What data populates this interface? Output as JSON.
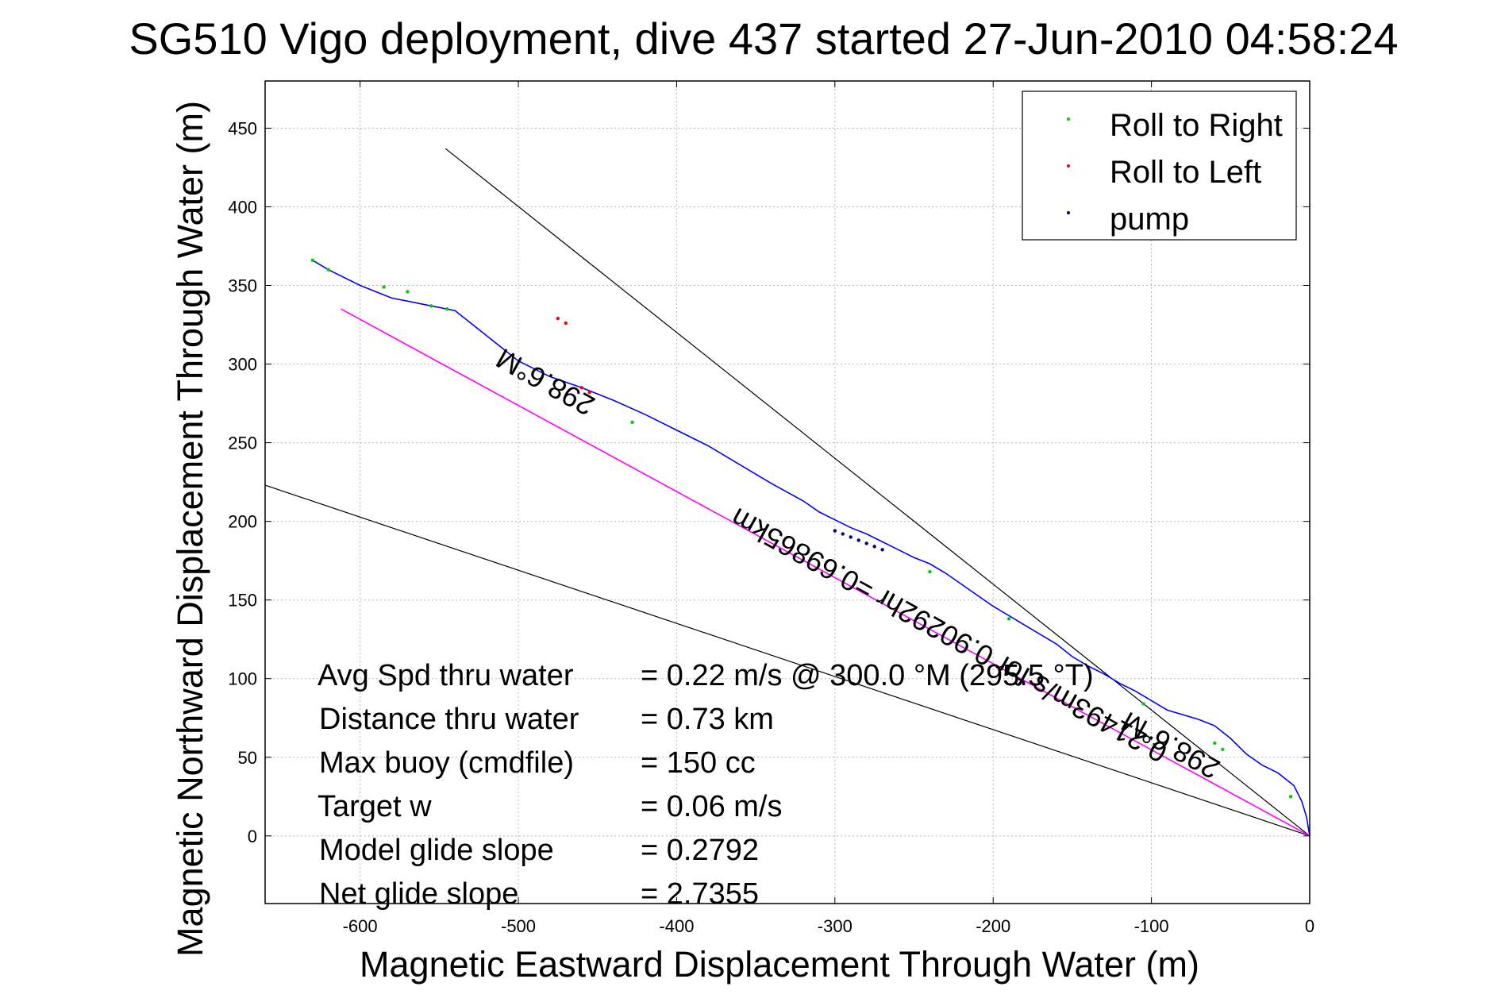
{
  "chart_data": {
    "type": "line",
    "title": "SG510 Vigo deployment, dive 437 started 27-Jun-2010 04:58:24",
    "xlabel": "Magnetic Eastward Displacement Through Water (m)",
    "ylabel": "Magnetic Northward Displacement Through Water (m)",
    "xlim": [
      -660,
      0
    ],
    "ylim": [
      -43,
      480
    ],
    "xticks": [
      -600,
      -500,
      -400,
      -300,
      -200,
      -100,
      0
    ],
    "yticks": [
      0,
      50,
      100,
      150,
      200,
      250,
      300,
      350,
      400,
      450
    ],
    "grid": true,
    "legend_position": "top-right",
    "legend": [
      {
        "label": "Roll to Right",
        "color": "#00cc00"
      },
      {
        "label": "Roll to Left",
        "color": "#ff0000"
      },
      {
        "label": "pump",
        "color": "#000080"
      }
    ],
    "series": [
      {
        "color": "#0000ff",
        "x": [
          0,
          -2,
          -5,
          -10,
          -20,
          -30,
          -40,
          -50,
          -60,
          -70,
          -80,
          -90,
          -100,
          -110,
          -120,
          -130,
          -140,
          -150,
          -160,
          -170,
          -180,
          -190,
          -200,
          -210,
          -220,
          -230,
          -240,
          -250,
          -260,
          -270,
          -280,
          -290,
          -300,
          -310,
          -320,
          -340,
          -360,
          -380,
          -400,
          -420,
          -440,
          -460,
          -480,
          -500,
          -520,
          -540,
          -560,
          -580,
          -600,
          -620,
          -630
        ],
        "y": [
          0,
          12,
          22,
          32,
          40,
          45,
          52,
          62,
          70,
          74,
          77,
          80,
          86,
          92,
          97,
          103,
          108,
          114,
          122,
          128,
          134,
          140,
          146,
          153,
          160,
          167,
          173,
          177,
          182,
          187,
          192,
          196,
          201,
          206,
          213,
          224,
          236,
          248,
          258,
          268,
          277,
          285,
          292,
          302,
          318,
          334,
          338,
          342,
          350,
          360,
          366
        ]
      },
      {
        "color": "#ff00ff",
        "x": [
          0,
          -612
        ],
        "y": [
          0,
          335
        ]
      }
    ],
    "reference_lines": [
      {
        "color": "#000000",
        "x": [
          0,
          -660
        ],
        "y": [
          0,
          223
        ]
      },
      {
        "color": "#000000",
        "x": [
          0,
          -546
        ],
        "y": [
          0,
          437
        ]
      }
    ],
    "roll_right_x": [
      -630,
      -620,
      -585,
      -570,
      -555,
      -545,
      -428,
      -240,
      -190,
      -105,
      -60,
      -55,
      -12
    ],
    "roll_right_y": [
      366,
      360,
      349,
      346,
      337,
      335,
      263,
      168,
      138,
      84,
      59,
      55,
      25
    ],
    "roll_left_x": [
      -475,
      -470,
      -460,
      -455
    ],
    "roll_left_y": [
      329,
      326,
      285,
      282
    ],
    "pump_x": [
      -300,
      -295,
      -290,
      -285,
      -280,
      -275,
      -270
    ],
    "pump_y": [
      194,
      192,
      190,
      188,
      186,
      184,
      182
    ],
    "stats": [
      {
        "label": "Avg Spd thru water",
        "value": "=  0.22 m/s @ 300.0 °M (295.5 °T)"
      },
      {
        "label": "Distance thru water",
        "value": "=  0.73 km"
      },
      {
        "label": "Max buoy (cmdfile)",
        "value": "= 150 cc"
      },
      {
        "label": "Target w",
        "value": "= 0.06 m/s"
      },
      {
        "label": "Model glide slope",
        "value": "= 0.2792"
      },
      {
        "label": "Net glide slope",
        "value": "= 2.7355"
      }
    ],
    "annotations": [
      {
        "text": "298.6°M",
        "x": -480,
        "y": 294,
        "rotate": 209
      },
      {
        "text": "0.21493m/s for 0.90292hr =0.69865km",
        "x": -225,
        "y": 133,
        "rotate": 209
      },
      {
        "text": "298.6°M",
        "x": -85,
        "y": 63,
        "rotate": 209
      }
    ]
  }
}
